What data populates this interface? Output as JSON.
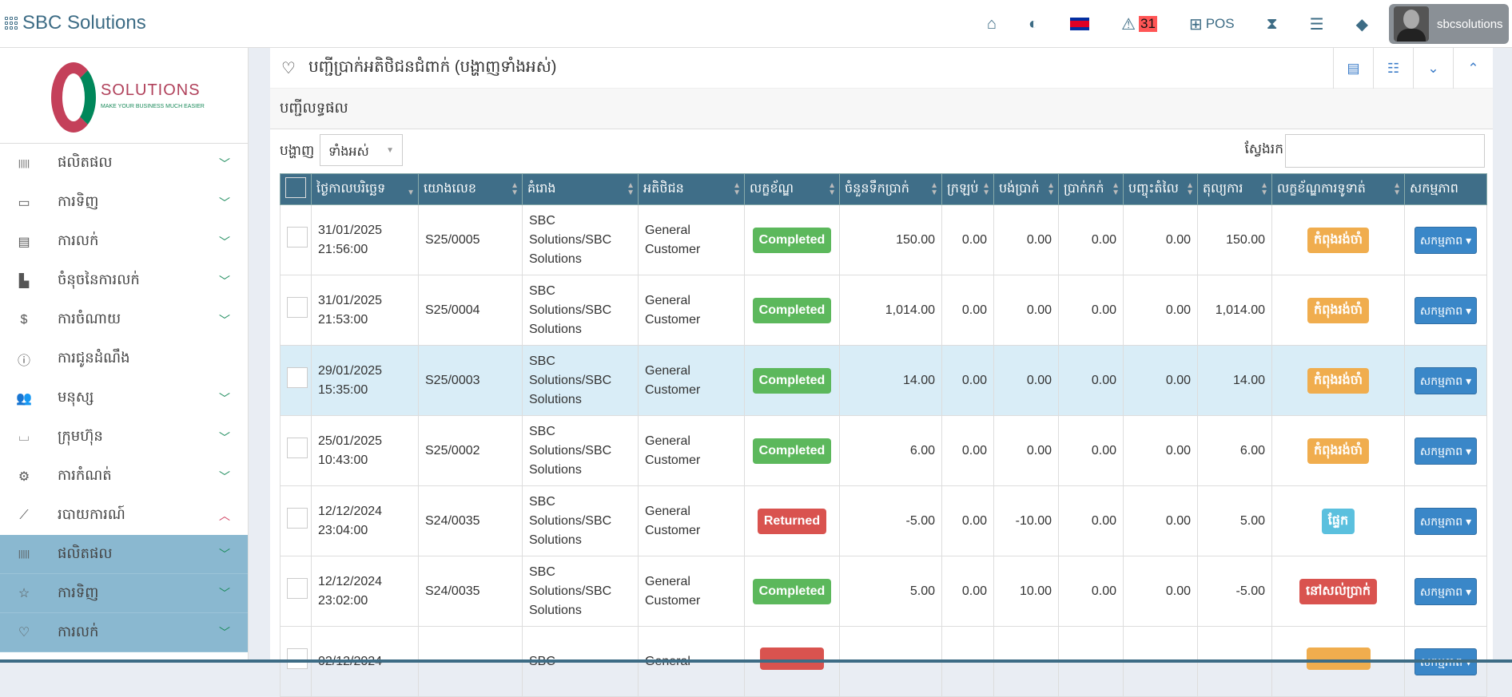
{
  "app": {
    "title": "SBC Solutions",
    "user": "sbcsolutions",
    "alert_count": "31",
    "pos_label": "POS"
  },
  "logo": {
    "text": "SOLUTIONS",
    "tagline": "MAKE YOUR BUSINESS MUCH EASIER",
    "letters": "SBC"
  },
  "sidebar": {
    "items": [
      {
        "label": "ផលិតផល",
        "icon": "barcode-icon",
        "chevron": "down"
      },
      {
        "label": "ការទិញ",
        "icon": "money-icon",
        "chevron": "down"
      },
      {
        "label": "ការលក់",
        "icon": "receipt-icon",
        "chevron": "down"
      },
      {
        "label": "ចំនុចនៃការលក់",
        "icon": "cash-register-icon",
        "chevron": "down"
      },
      {
        "label": "ការចំណាយ",
        "icon": "dollar-icon",
        "chevron": "down"
      },
      {
        "label": "ការជូនដំណឹង",
        "icon": "info-icon",
        "chevron": ""
      },
      {
        "label": "មនុស្ស",
        "icon": "users-icon",
        "chevron": "down"
      },
      {
        "label": "ក្រុមហ៊ុន",
        "icon": "company-icon",
        "chevron": "down"
      },
      {
        "label": "ការកំណត់",
        "icon": "gear-icon",
        "chevron": "down"
      },
      {
        "label": "របាយការណ៍",
        "icon": "chart-icon",
        "chevron": "up"
      },
      {
        "label": "ផលិតផល",
        "icon": "barcode-icon",
        "chevron": "down"
      },
      {
        "label": "ការទិញ",
        "icon": "star-icon",
        "chevron": "down"
      },
      {
        "label": "ការលក់",
        "icon": "heart-icon",
        "chevron": "down"
      }
    ]
  },
  "page": {
    "title": "បញ្ជីប្រាក់អតិថិជនជំពាក់ (បង្ហាញទាំងអស់)",
    "subtitle": "បញ្ជីលទ្ធផល",
    "show_label": "បង្ហាញ",
    "show_value": "ទាំងអស់",
    "search_label": "ស្វែងរក",
    "search_value": ""
  },
  "table": {
    "headers": [
      "ថ្ងៃកាលបរិច្ឆេទ",
      "យោងលេខ",
      "គំរោង",
      "អតិថិជន",
      "លក្ខខ័ណ្ឌ",
      "ចំនួនទឹកប្រាក់",
      "ក្រឡប់",
      "បង់ប្រាក់",
      "ប្រាក់កក់",
      "បញ្ចុះតំលៃ",
      "តុល្យការ",
      "លក្ខខ័ណ្ឌការទូទាត់",
      "សកម្មភាព"
    ],
    "action_label": "សកម្មភាព",
    "rows": [
      {
        "date": "31/01/2025",
        "time": "21:56:00",
        "ref": "S25/0005",
        "biller": "SBC Solutions/SBC Solutions",
        "customer": "General Customer",
        "status": "Completed",
        "status_color": "#5cb85c",
        "total": "150.00",
        "returned": "0.00",
        "paid": "0.00",
        "deposit": "0.00",
        "discount": "0.00",
        "balance": "150.00",
        "payment": "កំពុងរង់ចាំ",
        "payment_color": "#f0ad4e"
      },
      {
        "date": "31/01/2025",
        "time": "21:53:00",
        "ref": "S25/0004",
        "biller": "SBC Solutions/SBC Solutions",
        "customer": "General Customer",
        "status": "Completed",
        "status_color": "#5cb85c",
        "total": "1,014.00",
        "returned": "0.00",
        "paid": "0.00",
        "deposit": "0.00",
        "discount": "0.00",
        "balance": "1,014.00",
        "payment": "កំពុងរង់ចាំ",
        "payment_color": "#f0ad4e"
      },
      {
        "date": "29/01/2025",
        "time": "15:35:00",
        "ref": "S25/0003",
        "biller": "SBC Solutions/SBC Solutions",
        "customer": "General Customer",
        "status": "Completed",
        "status_color": "#5cb85c",
        "total": "14.00",
        "returned": "0.00",
        "paid": "0.00",
        "deposit": "0.00",
        "discount": "0.00",
        "balance": "14.00",
        "payment": "កំពុងរង់ចាំ",
        "payment_color": "#f0ad4e"
      },
      {
        "date": "25/01/2025",
        "time": "10:43:00",
        "ref": "S25/0002",
        "biller": "SBC Solutions/SBC Solutions",
        "customer": "General Customer",
        "status": "Completed",
        "status_color": "#5cb85c",
        "total": "6.00",
        "returned": "0.00",
        "paid": "0.00",
        "deposit": "0.00",
        "discount": "0.00",
        "balance": "6.00",
        "payment": "កំពុងរង់ចាំ",
        "payment_color": "#f0ad4e"
      },
      {
        "date": "12/12/2024",
        "time": "23:04:00",
        "ref": "S24/0035",
        "biller": "SBC Solutions/SBC Solutions",
        "customer": "General Customer",
        "status": "Returned",
        "status_color": "#d9534f",
        "total": "-5.00",
        "returned": "0.00",
        "paid": "-10.00",
        "deposit": "0.00",
        "discount": "0.00",
        "balance": "5.00",
        "payment": "ផ្ទែក",
        "payment_color": "#5bc0de"
      },
      {
        "date": "12/12/2024",
        "time": "23:02:00",
        "ref": "S24/0035",
        "biller": "SBC Solutions/SBC Solutions",
        "customer": "General Customer",
        "status": "Completed",
        "status_color": "#5cb85c",
        "total": "5.00",
        "returned": "0.00",
        "paid": "10.00",
        "deposit": "0.00",
        "discount": "0.00",
        "balance": "-5.00",
        "payment": "នៅសល់ប្រាក់",
        "payment_color": "#d9534f"
      },
      {
        "date": "02/12/2024",
        "time": "",
        "ref": "",
        "biller": "SBC",
        "customer": "General",
        "status": "",
        "status_color": "#d9534f",
        "total": "",
        "returned": "",
        "paid": "",
        "deposit": "",
        "discount": "",
        "balance": "",
        "payment": "",
        "payment_color": "#f0ad4e"
      }
    ]
  }
}
